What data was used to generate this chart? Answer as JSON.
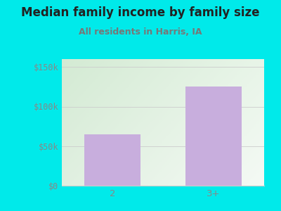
{
  "categories": [
    "2",
    "3+"
  ],
  "values": [
    65000,
    125000
  ],
  "bar_color": "#c8aedd",
  "background_color": "#00eaea",
  "title": "Median family income by family size",
  "subtitle": "All residents in Harris, IA",
  "title_color": "#222222",
  "subtitle_color": "#777777",
  "yticks": [
    0,
    50000,
    100000,
    150000
  ],
  "ytick_labels": [
    "$0",
    "$50k",
    "$100k",
    "$150k"
  ],
  "ylim": [
    0,
    160000
  ],
  "tick_color": "#888888",
  "grid_color": "#cccccc",
  "title_fontsize": 12,
  "subtitle_fontsize": 9,
  "axis_label_fontsize": 8.5,
  "bar_width": 0.55,
  "plot_left_color": "#ddf0e0",
  "plot_right_color": "#f5f5f5"
}
